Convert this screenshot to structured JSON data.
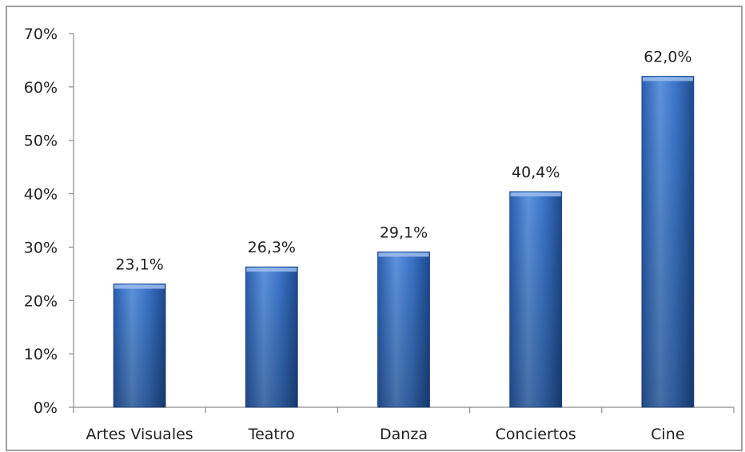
{
  "chart_data": {
    "type": "bar",
    "title": "",
    "xlabel": "",
    "ylabel": "",
    "categories": [
      "Artes Visuales",
      "Teatro",
      "Danza",
      "Conciertos",
      "Cine"
    ],
    "values": [
      23.1,
      26.3,
      29.1,
      40.4,
      62.0
    ],
    "value_labels": [
      "23,1%",
      "26,3%",
      "29,1%",
      "40,4%",
      "62,0%"
    ],
    "ylim": [
      0,
      70
    ],
    "yticks": [
      0,
      10,
      20,
      30,
      40,
      50,
      60,
      70
    ],
    "ytick_labels": [
      "0%",
      "10%",
      "20%",
      "30%",
      "40%",
      "50%",
      "60%",
      "70%"
    ],
    "grid": false,
    "legend": "none",
    "colors": {
      "bar_top": "#6f9fe0",
      "bar_mid": "#3a74c8",
      "bar_bottom": "#1f4f96",
      "axis": "#8c8c8c",
      "border": "#7f7f7f"
    }
  }
}
